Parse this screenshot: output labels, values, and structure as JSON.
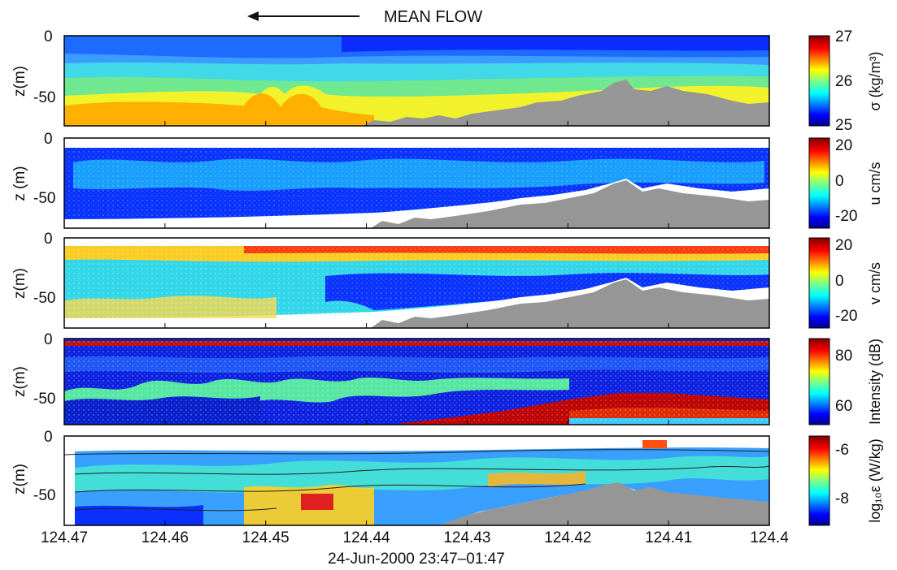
{
  "header": {
    "arrow_label": "MEAN FLOW"
  },
  "xaxis": {
    "ticks": [
      "124.47",
      "124.46",
      "124.45",
      "124.44",
      "124.43",
      "124.42",
      "124.41",
      "124.4"
    ],
    "tick_values": [
      124.47,
      124.46,
      124.45,
      124.44,
      124.43,
      124.42,
      124.41,
      124.4
    ],
    "label": "24-Jun-2000 23:47–01:47"
  },
  "yaxis": {
    "ticks": [
      "0",
      "-50"
    ]
  },
  "colors": {
    "jet": [
      "#00008f",
      "#0000ff",
      "#0080ff",
      "#00ffff",
      "#80ff80",
      "#ffff00",
      "#ff8000",
      "#ff0000",
      "#800000"
    ],
    "bottom_fill": "#969696"
  },
  "chart_data": [
    {
      "type": "heatmap",
      "panel_id": "sigma",
      "ylabel": "z(m)",
      "colorbar": {
        "label": "σ (kg/m³)",
        "ticks": [
          "27",
          "26",
          "25"
        ],
        "tick_values": [
          27,
          26,
          25
        ],
        "range": [
          25,
          27
        ]
      },
      "xlim": [
        124.47,
        124.4
      ],
      "ylim": [
        -72,
        0
      ],
      "bottom_depth": {
        "lon": [
          124.47,
          124.44,
          124.435,
          124.43,
          124.42,
          124.415,
          124.41,
          124.405,
          124.4
        ],
        "z": [
          -72,
          -68,
          -66,
          -62,
          -55,
          -38,
          -45,
          -48,
          -52
        ]
      }
    },
    {
      "type": "heatmap",
      "panel_id": "u",
      "ylabel": "z (m)",
      "colorbar": {
        "label": "u cm/s",
        "ticks": [
          "20",
          "0",
          "-20"
        ],
        "tick_values": [
          20,
          0,
          -20
        ],
        "range": [
          -25,
          25
        ]
      },
      "xlim": [
        124.47,
        124.4
      ],
      "ylim": [
        -72,
        0
      ]
    },
    {
      "type": "heatmap",
      "panel_id": "v",
      "ylabel": "z(m)",
      "colorbar": {
        "label": "v cm/s",
        "ticks": [
          "20",
          "0",
          "-20"
        ],
        "tick_values": [
          20,
          0,
          -20
        ],
        "range": [
          -25,
          25
        ]
      },
      "xlim": [
        124.47,
        124.4
      ],
      "ylim": [
        -72,
        0
      ]
    },
    {
      "type": "heatmap",
      "panel_id": "intensity",
      "ylabel": "z(m)",
      "colorbar": {
        "label": "Intensity (dB)",
        "ticks": [
          "80",
          "60"
        ],
        "tick_values": [
          80,
          60
        ],
        "range": [
          52,
          87
        ]
      },
      "xlim": [
        124.47,
        124.4
      ],
      "ylim": [
        -72,
        0
      ]
    },
    {
      "type": "heatmap",
      "panel_id": "epsilon",
      "ylabel": "z(m)",
      "colorbar": {
        "label": "log₁₀ε (W/kg)",
        "ticks": [
          "-6",
          "-8"
        ],
        "tick_values": [
          -6,
          -8
        ],
        "range": [
          -9,
          -5.5
        ]
      },
      "xlim": [
        124.47,
        124.4
      ],
      "ylim": [
        -72,
        0
      ]
    }
  ]
}
